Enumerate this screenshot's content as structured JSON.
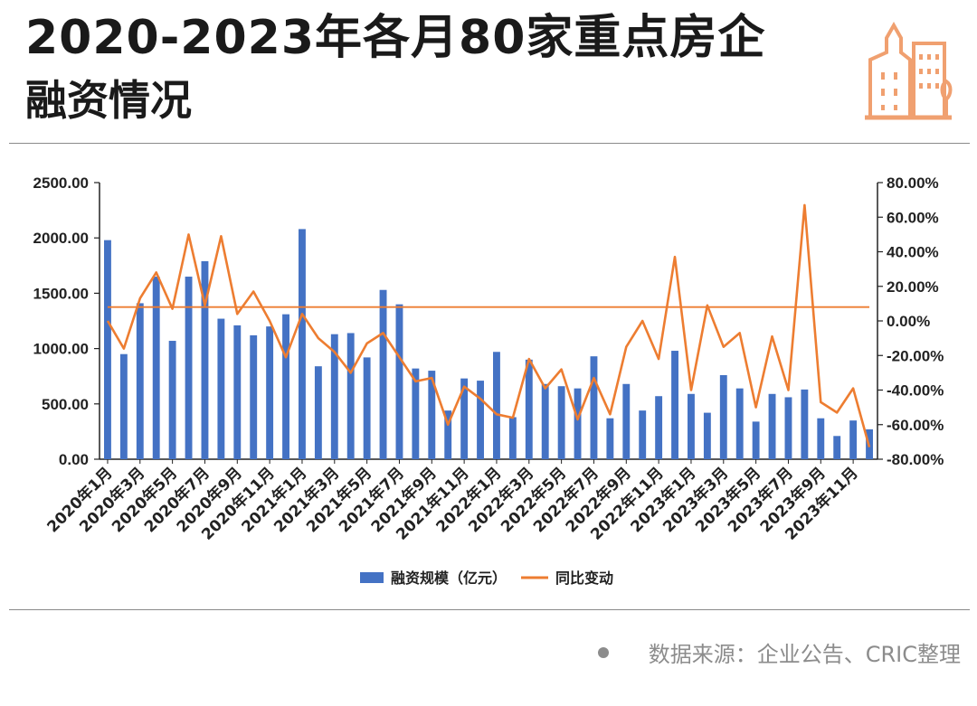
{
  "header": {
    "title": "2020-2023年各月80家重点房企",
    "subtitle": "融资情况"
  },
  "footer": {
    "source": "数据来源：企业公告、CRIC整理"
  },
  "colors": {
    "bar": "#4472c4",
    "line": "#ed7d31",
    "ref_line": "#ed7d31"
  },
  "icons": {
    "logo": "city-buildings-icon"
  },
  "chart_data": {
    "type": "bar",
    "title": "",
    "xlabel": "",
    "ylabel": "",
    "ylim": [
      0,
      2500
    ],
    "y2lim": [
      -0.8,
      0.8
    ],
    "y_ticks": [
      "2500.00",
      "2000.00",
      "1500.00",
      "1000.00",
      "500.00",
      "0.00"
    ],
    "y2_ticks": [
      "80.00%",
      "60.00%",
      "40.00%",
      "20.00%",
      "0.00%",
      "-20.00%",
      "-40.00%",
      "-60.00%",
      "-80.00%"
    ],
    "legend_position": "bottom",
    "categories": [
      "2020年1月",
      "2020年2月",
      "2020年3月",
      "2020年4月",
      "2020年5月",
      "2020年6月",
      "2020年7月",
      "2020年8月",
      "2020年9月",
      "2020年10月",
      "2020年11月",
      "2020年12月",
      "2021年1月",
      "2021年2月",
      "2021年3月",
      "2021年4月",
      "2021年5月",
      "2021年6月",
      "2021年7月",
      "2021年8月",
      "2021年9月",
      "2021年10月",
      "2021年11月",
      "2021年12月",
      "2022年1月",
      "2022年2月",
      "2022年3月",
      "2022年4月",
      "2022年5月",
      "2022年6月",
      "2022年7月",
      "2022年8月",
      "2022年9月",
      "2022年10月",
      "2022年11月",
      "2022年12月",
      "2023年1月",
      "2023年2月",
      "2023年3月",
      "2023年4月",
      "2023年5月",
      "2023年6月",
      "2023年7月",
      "2023年8月",
      "2023年9月",
      "2023年10月",
      "2023年11月",
      "2023年12月"
    ],
    "x_tick_labels": [
      "2020年1月",
      "2020年3月",
      "2020年5月",
      "2020年7月",
      "2020年9月",
      "2020年11月",
      "2021年1月",
      "2021年3月",
      "2021年5月",
      "2021年7月",
      "2021年9月",
      "2021年11月",
      "2022年1月",
      "2022年3月",
      "2022年5月",
      "2022年7月",
      "2022年9月",
      "2022年11月",
      "2023年1月",
      "2023年3月",
      "2023年5月",
      "2023年7月",
      "2023年9月",
      "2023年11月"
    ],
    "series": [
      {
        "name": "融资规模（亿元）",
        "type": "bar",
        "axis": "left",
        "values": [
          1980,
          950,
          1410,
          1650,
          1070,
          1650,
          1790,
          1270,
          1210,
          1120,
          1200,
          1310,
          2080,
          840,
          1130,
          1140,
          920,
          1530,
          1400,
          820,
          800,
          440,
          730,
          710,
          970,
          380,
          900,
          680,
          660,
          640,
          930,
          370,
          680,
          440,
          570,
          980,
          590,
          420,
          760,
          640,
          340,
          590,
          560,
          630,
          370,
          210,
          350,
          270
        ]
      },
      {
        "name": "同比变动",
        "type": "line",
        "axis": "right",
        "values": [
          0.0,
          -0.16,
          0.13,
          0.28,
          0.07,
          0.5,
          0.09,
          0.49,
          0.04,
          0.17,
          0.0,
          -0.21,
          0.04,
          -0.1,
          -0.18,
          -0.3,
          -0.13,
          -0.07,
          -0.21,
          -0.35,
          -0.33,
          -0.6,
          -0.38,
          -0.45,
          -0.54,
          -0.56,
          -0.22,
          -0.39,
          -0.28,
          -0.57,
          -0.33,
          -0.54,
          -0.15,
          0.0,
          -0.22,
          0.37,
          -0.4,
          0.09,
          -0.15,
          -0.07,
          -0.5,
          -0.09,
          -0.4,
          0.67,
          -0.47,
          -0.53,
          -0.39,
          -0.73
        ]
      }
    ],
    "reference_line": {
      "axis": "right",
      "value": 0.08
    }
  }
}
